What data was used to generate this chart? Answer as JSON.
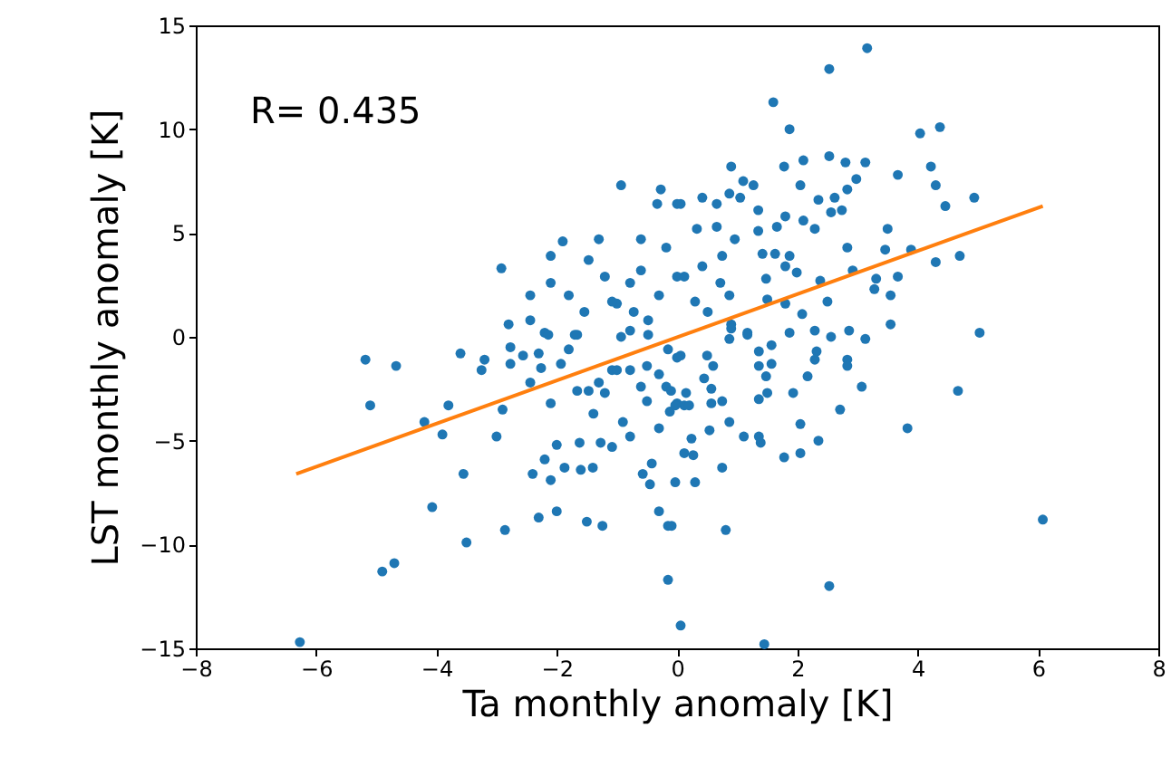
{
  "chart_data": {
    "type": "scatter",
    "xlabel": "Ta monthly anomaly [K]",
    "ylabel": "LST monthly anomaly [K]",
    "annotations": [
      "R= 0.435"
    ],
    "xlim": [
      -8,
      8
    ],
    "ylim": [
      -15,
      15
    ],
    "xticks": [
      -8,
      -6,
      -4,
      -2,
      0,
      2,
      4,
      6,
      8
    ],
    "yticks": [
      -15,
      -10,
      -5,
      0,
      5,
      10,
      15
    ],
    "grid": false,
    "series": [
      {
        "marker": "circle",
        "color": "#1f77b4",
        "x": [
          -6.27,
          -5.18,
          -5.1,
          -4.67,
          -4.2,
          -3.9,
          -3.8,
          -3.6,
          -3.55,
          -4.07,
          -3.5,
          -4.9,
          -4.7,
          -3.25,
          -3.2,
          -3.0,
          -2.9,
          -2.86,
          -2.77,
          -2.77,
          -2.56,
          -2.44,
          -2.4,
          -2.3,
          -2.3,
          -2.2,
          -2.26,
          -2.1,
          -2.1,
          -2.2,
          -2.0,
          -2.0,
          -1.93,
          -1.87,
          -1.8,
          -1.7,
          -1.66,
          -1.62,
          -1.6,
          -1.5,
          -1.47,
          -1.39,
          -1.3,
          -1.27,
          -1.24,
          -1.2,
          -1.4,
          -1.08,
          -1.08,
          -0.9,
          -0.78,
          -0.6,
          -0.57,
          -0.5,
          -0.45,
          -0.5,
          -0.42,
          -0.3,
          -0.3,
          -0.18,
          -0.15,
          -0.15,
          -0.12,
          0.06,
          0.27,
          0.12,
          -2.92,
          -2.1,
          -1.9,
          -2.44,
          -2.1,
          -1.8,
          -1.47,
          -1.3,
          -0.93,
          -0.27,
          -0.33,
          -0.6,
          -1.2,
          -1.0,
          -0.72,
          -0.48,
          -1.54,
          -2.8,
          -2.44,
          -1.66,
          -2.14,
          0.0,
          -0.18,
          -0.6,
          0.0,
          -0.3,
          -0.78,
          -1.08,
          3.16,
          2.53,
          1.6,
          1.87,
          4.04,
          4.37,
          0.9,
          1.78,
          2.1,
          2.53,
          2.8,
          3.13,
          3.67,
          4.22,
          4.3,
          4.94,
          4.46,
          2.98,
          2.83,
          2.05,
          2.35,
          2.62,
          2.56,
          2.74,
          1.1,
          1.27,
          0.87,
          0.42,
          0.06,
          0.66,
          1.05,
          1.35,
          1.8,
          2.1,
          2.29,
          1.66,
          0.33,
          0.66,
          0.96,
          1.35,
          3.5,
          2.83,
          3.46,
          3.89,
          4.3,
          4.7,
          1.42,
          1.63,
          1.87,
          0.75,
          0.42,
          1.8,
          1.99,
          2.92,
          3.31,
          3.67,
          1.48,
          2.38,
          0.12,
          0.72,
          3.28,
          3.55,
          2.5,
          1.8,
          1.5,
          0.87,
          0.3,
          0.51,
          2.08,
          3.55,
          2.29,
          5.03,
          1.87,
          2.56,
          2.86,
          3.13,
          1.17,
          0.9,
          2.83,
          2.83,
          2.32,
          2.29,
          1.57,
          1.36,
          1.36,
          1.57,
          1.48,
          2.17,
          3.07,
          4.67,
          1.93,
          1.5,
          1.36,
          2.71,
          3.83,
          2.05,
          0.87,
          0.54,
          1.11,
          1.36,
          1.39,
          2.35,
          2.05,
          1.78,
          0.24,
          0.12,
          0.75,
          -0.03,
          0.3,
          0.81,
          -0.09,
          6.08,
          2.53,
          1.45,
          0.5,
          0.6,
          0.45,
          0.57,
          0.75,
          0.0,
          0.2,
          0.57,
          -0.1,
          0.06,
          0.87,
          0.9,
          1.17,
          -0.93,
          -0.78,
          -0.48,
          -0.15,
          0.0,
          -0.3,
          -0.03,
          0.15,
          -0.78,
          -1.0
        ],
        "values": [
          -14.7,
          -1.1,
          -3.3,
          -1.4,
          -4.1,
          -4.7,
          -3.3,
          -0.8,
          -6.6,
          -8.2,
          -9.9,
          -11.3,
          -10.9,
          -1.6,
          -1.1,
          -4.8,
          -3.5,
          -9.3,
          -0.5,
          -1.3,
          -0.9,
          -2.2,
          -6.6,
          -0.8,
          -8.7,
          -5.9,
          -1.5,
          -6.9,
          -3.2,
          0.2,
          -5.2,
          -8.4,
          -1.3,
          -6.3,
          -0.6,
          0.1,
          -2.6,
          -5.1,
          -6.4,
          -8.9,
          -2.6,
          -3.7,
          -2.2,
          -5.1,
          -9.1,
          -2.7,
          -6.3,
          -5.3,
          -1.6,
          -4.1,
          -4.8,
          -2.4,
          -6.6,
          -3.1,
          -7.1,
          -1.4,
          -6.1,
          -4.4,
          -8.4,
          -2.4,
          -9.1,
          -11.7,
          -3.6,
          -13.9,
          -5.7,
          -3.3,
          3.3,
          3.9,
          4.6,
          2.0,
          2.6,
          2.0,
          3.7,
          4.7,
          7.3,
          7.1,
          6.4,
          4.7,
          2.9,
          1.6,
          1.2,
          0.8,
          1.2,
          0.6,
          0.8,
          0.1,
          0.1,
          6.4,
          4.3,
          3.2,
          2.9,
          2.0,
          2.6,
          1.7,
          13.9,
          12.9,
          11.3,
          10.0,
          9.8,
          10.1,
          8.2,
          8.2,
          8.5,
          8.7,
          8.4,
          8.4,
          7.8,
          8.2,
          7.3,
          6.7,
          6.3,
          7.6,
          7.1,
          7.3,
          6.6,
          6.7,
          6.0,
          6.1,
          7.5,
          7.3,
          6.9,
          6.7,
          6.4,
          6.4,
          6.7,
          6.1,
          5.8,
          5.6,
          5.2,
          5.3,
          5.2,
          5.3,
          4.7,
          5.1,
          5.2,
          4.3,
          4.2,
          4.2,
          3.6,
          3.9,
          4.0,
          4.0,
          3.9,
          3.9,
          3.4,
          3.4,
          3.1,
          3.2,
          2.8,
          2.9,
          2.8,
          2.7,
          2.9,
          2.6,
          2.3,
          2.0,
          1.7,
          1.6,
          1.8,
          2.0,
          1.7,
          1.2,
          1.1,
          0.6,
          0.3,
          0.2,
          0.2,
          0.0,
          0.3,
          -0.1,
          0.2,
          0.6,
          -1.1,
          -1.4,
          -0.7,
          -1.1,
          -0.4,
          -0.7,
          -1.4,
          -1.3,
          -1.9,
          -1.9,
          -2.4,
          -2.6,
          -2.7,
          -2.7,
          -3.0,
          -3.5,
          -4.4,
          -4.2,
          -4.1,
          -4.5,
          -4.8,
          -4.8,
          -5.1,
          -5.0,
          -5.6,
          -5.8,
          -4.9,
          -5.6,
          -6.3,
          -7.0,
          -7.0,
          -9.3,
          -9.1,
          -8.8,
          -12.0,
          -14.8,
          -0.9,
          -1.4,
          -2.0,
          -2.5,
          -3.1,
          -3.2,
          -3.3,
          -3.2,
          -2.6,
          -0.9,
          -0.1,
          0.4,
          0.1,
          0.0,
          0.3,
          0.1,
          -0.6,
          -1.0,
          -1.8,
          -3.3,
          -2.7,
          -1.6,
          -1.6
        ]
      },
      {
        "type": "line",
        "color": "#ff7f0e",
        "x": [
          -6.33,
          6.08
        ],
        "values": [
          -6.6,
          6.3
        ]
      }
    ]
  }
}
